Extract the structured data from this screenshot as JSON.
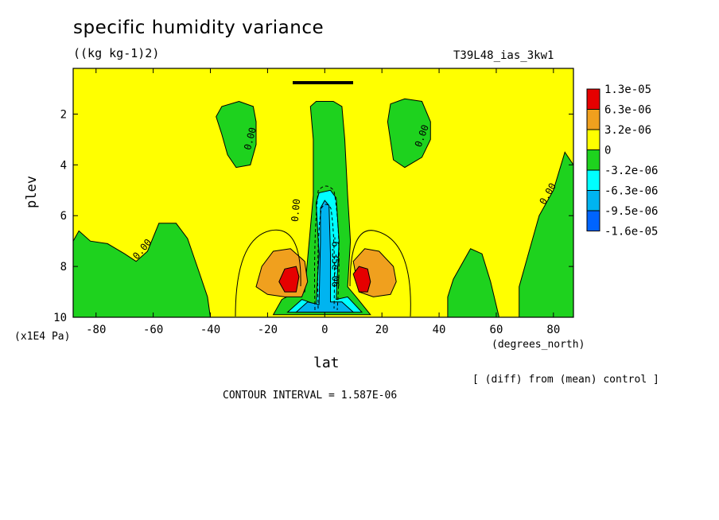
{
  "chart_data": {
    "type": "contour",
    "title": "specific humidity variance",
    "units": "((kg kg-1)2)",
    "run_id": "T39L48_ias_3kw1",
    "xlabel": "lat",
    "x_units": "(degrees_north)",
    "ylabel": "plev",
    "y_multiplier": "(x1E4 Pa)",
    "xlim": [
      -88,
      87
    ],
    "ylim": [
      10,
      0.2
    ],
    "x_ticks": [
      -80,
      -60,
      -40,
      -20,
      0,
      20,
      40,
      60,
      80
    ],
    "y_ticks": [
      2,
      4,
      6,
      8,
      10
    ],
    "annotation": "[ (diff) from (mean) control ]",
    "contour_interval": "CONTOUR INTERVAL = 1.587E-06",
    "contour_labels": [
      "0.00",
      "0.00",
      "0.00",
      "0.00",
      "0.00",
      "-6.35e-06"
    ],
    "legend": {
      "position": "right",
      "labels": [
        "1.3e-05",
        "6.3e-06",
        "3.2e-06",
        "0",
        "-3.2e-06",
        "-6.3e-06",
        "-9.5e-06",
        "-1.6e-05"
      ],
      "colors": [
        "#e60000",
        "#f0a01e",
        "#ffff00",
        "#1ed21e",
        "#00ffff",
        "#00b4f0",
        "#0064ff"
      ]
    },
    "regions": [
      {
        "level": "0 to -3.2e-06",
        "color": "#1ed21e",
        "polygons": [
          [
            [
              -88,
              7.0
            ],
            [
              -86,
              6.6
            ],
            [
              -82,
              7.0
            ],
            [
              -76,
              7.1
            ],
            [
              -70,
              7.5
            ],
            [
              -66,
              7.8
            ],
            [
              -62,
              7.4
            ],
            [
              -58,
              6.3
            ],
            [
              -52,
              6.3
            ],
            [
              -48,
              6.9
            ],
            [
              -44,
              8.2
            ],
            [
              -41,
              9.2
            ],
            [
              -40,
              10
            ],
            [
              -88,
              10
            ]
          ],
          [
            [
              -38,
              2.1
            ],
            [
              -36,
              1.7
            ],
            [
              -30,
              1.5
            ],
            [
              -25,
              1.7
            ],
            [
              -24,
              2.3
            ],
            [
              -24,
              3.2
            ],
            [
              -26,
              4.0
            ],
            [
              -31,
              4.1
            ],
            [
              -34,
              3.6
            ],
            [
              -36,
              2.8
            ]
          ],
          [
            [
              22,
              2.3
            ],
            [
              23,
              1.6
            ],
            [
              28,
              1.4
            ],
            [
              34,
              1.5
            ],
            [
              37,
              2.3
            ],
            [
              37,
              3.0
            ],
            [
              34,
              3.7
            ],
            [
              28,
              4.1
            ],
            [
              24,
              3.8
            ]
          ],
          [
            [
              -7,
              9.0
            ],
            [
              -4,
              5.2
            ],
            [
              -4,
              3.0
            ],
            [
              -5,
              1.7
            ],
            [
              -3,
              1.5
            ],
            [
              3,
              1.5
            ],
            [
              6,
              1.7
            ],
            [
              7,
              3.0
            ],
            [
              8,
              5.2
            ],
            [
              9,
              7.0
            ],
            [
              8,
              8.8
            ],
            [
              11,
              9.2
            ],
            [
              16,
              9.9
            ],
            [
              -18,
              9.9
            ],
            [
              -15,
              9.3
            ],
            [
              -10,
              9.0
            ]
          ],
          [
            [
              43,
              10
            ],
            [
              43,
              9.2
            ],
            [
              45,
              8.5
            ],
            [
              51,
              7.3
            ],
            [
              55,
              7.5
            ],
            [
              58,
              8.6
            ],
            [
              61,
              10
            ]
          ],
          [
            [
              68,
              10
            ],
            [
              68,
              8.8
            ],
            [
              71,
              7.6
            ],
            [
              75,
              6.0
            ],
            [
              80,
              5.0
            ],
            [
              84,
              3.5
            ],
            [
              87,
              4.0
            ],
            [
              87,
              10
            ]
          ]
        ]
      },
      {
        "level": "-3.2e-06 to -6.3e-06",
        "color": "#00ffff",
        "polygons": [
          [
            [
              -3,
              9.5
            ],
            [
              -2,
              7.5
            ],
            [
              -3,
              5.5
            ],
            [
              -2,
              5.1
            ],
            [
              2,
              5.0
            ],
            [
              4,
              5.3
            ],
            [
              5,
              7.0
            ],
            [
              4,
              9.3
            ],
            [
              8,
              9.2
            ],
            [
              13,
              9.8
            ],
            [
              -13,
              9.8
            ],
            [
              -8,
              9.3
            ]
          ]
        ]
      },
      {
        "level": "-6.3e-06 to -9.5e-06",
        "color": "#00b4f0",
        "polygons": [
          [
            [
              -2,
              9.5
            ],
            [
              -1.5,
              7.0
            ],
            [
              -1.5,
              5.7
            ],
            [
              0,
              5.4
            ],
            [
              1.5,
              5.6
            ],
            [
              2,
              7.5
            ],
            [
              2,
              9.4
            ],
            [
              6,
              9.4
            ],
            [
              10,
              9.8
            ],
            [
              -10,
              9.8
            ],
            [
              -6,
              9.4
            ]
          ]
        ]
      },
      {
        "level": "3.2e-06 to 6.3e-06",
        "color": "#f0a01e",
        "polygons": [
          [
            [
              -24,
              8.8
            ],
            [
              -22,
              8.0
            ],
            [
              -18,
              7.4
            ],
            [
              -12,
              7.3
            ],
            [
              -7,
              7.8
            ],
            [
              -6,
              8.6
            ],
            [
              -8,
              9.2
            ],
            [
              -14,
              9.2
            ],
            [
              -20,
              9.1
            ]
          ],
          [
            [
              10,
              7.8
            ],
            [
              14,
              7.3
            ],
            [
              19,
              7.4
            ],
            [
              24,
              8.0
            ],
            [
              25,
              8.6
            ],
            [
              23,
              9.1
            ],
            [
              17,
              9.2
            ],
            [
              12,
              9.0
            ]
          ]
        ]
      },
      {
        "level": "6.3e-06 to 1.3e-05",
        "color": "#e60000",
        "polygons": [
          [
            [
              -16,
              8.6
            ],
            [
              -14,
              8.1
            ],
            [
              -10,
              8.0
            ],
            [
              -9,
              8.4
            ],
            [
              -10,
              9.0
            ],
            [
              -14,
              9.0
            ]
          ],
          [
            [
              10,
              8.3
            ],
            [
              12,
              8.0
            ],
            [
              15,
              8.1
            ],
            [
              16,
              8.6
            ],
            [
              15,
              9.0
            ],
            [
              12,
              9.0
            ]
          ]
        ]
      }
    ]
  }
}
